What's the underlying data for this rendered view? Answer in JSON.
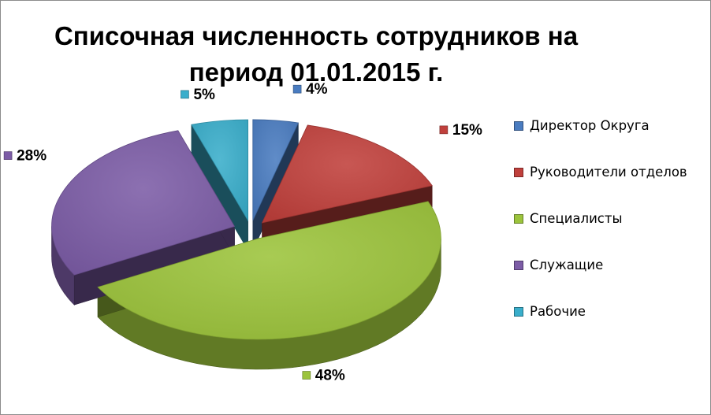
{
  "chart_data": {
    "type": "pie",
    "title": [
      "Списочная численность сотрудников на",
      "период 01.01.2015 г."
    ],
    "categories": [
      "Директор Округа",
      "Руководители отделов",
      "Специалисты",
      "Служащие",
      "Рабочие"
    ],
    "values": [
      4,
      15,
      48,
      28,
      5
    ],
    "data_labels": [
      "4%",
      "15%",
      "48%",
      "28%",
      "5%"
    ],
    "colors": [
      "#4a7cc0",
      "#c0403c",
      "#9cc43c",
      "#7c5ca6",
      "#3aaecb"
    ],
    "legend_position": "right",
    "style": "3d-exploded"
  }
}
